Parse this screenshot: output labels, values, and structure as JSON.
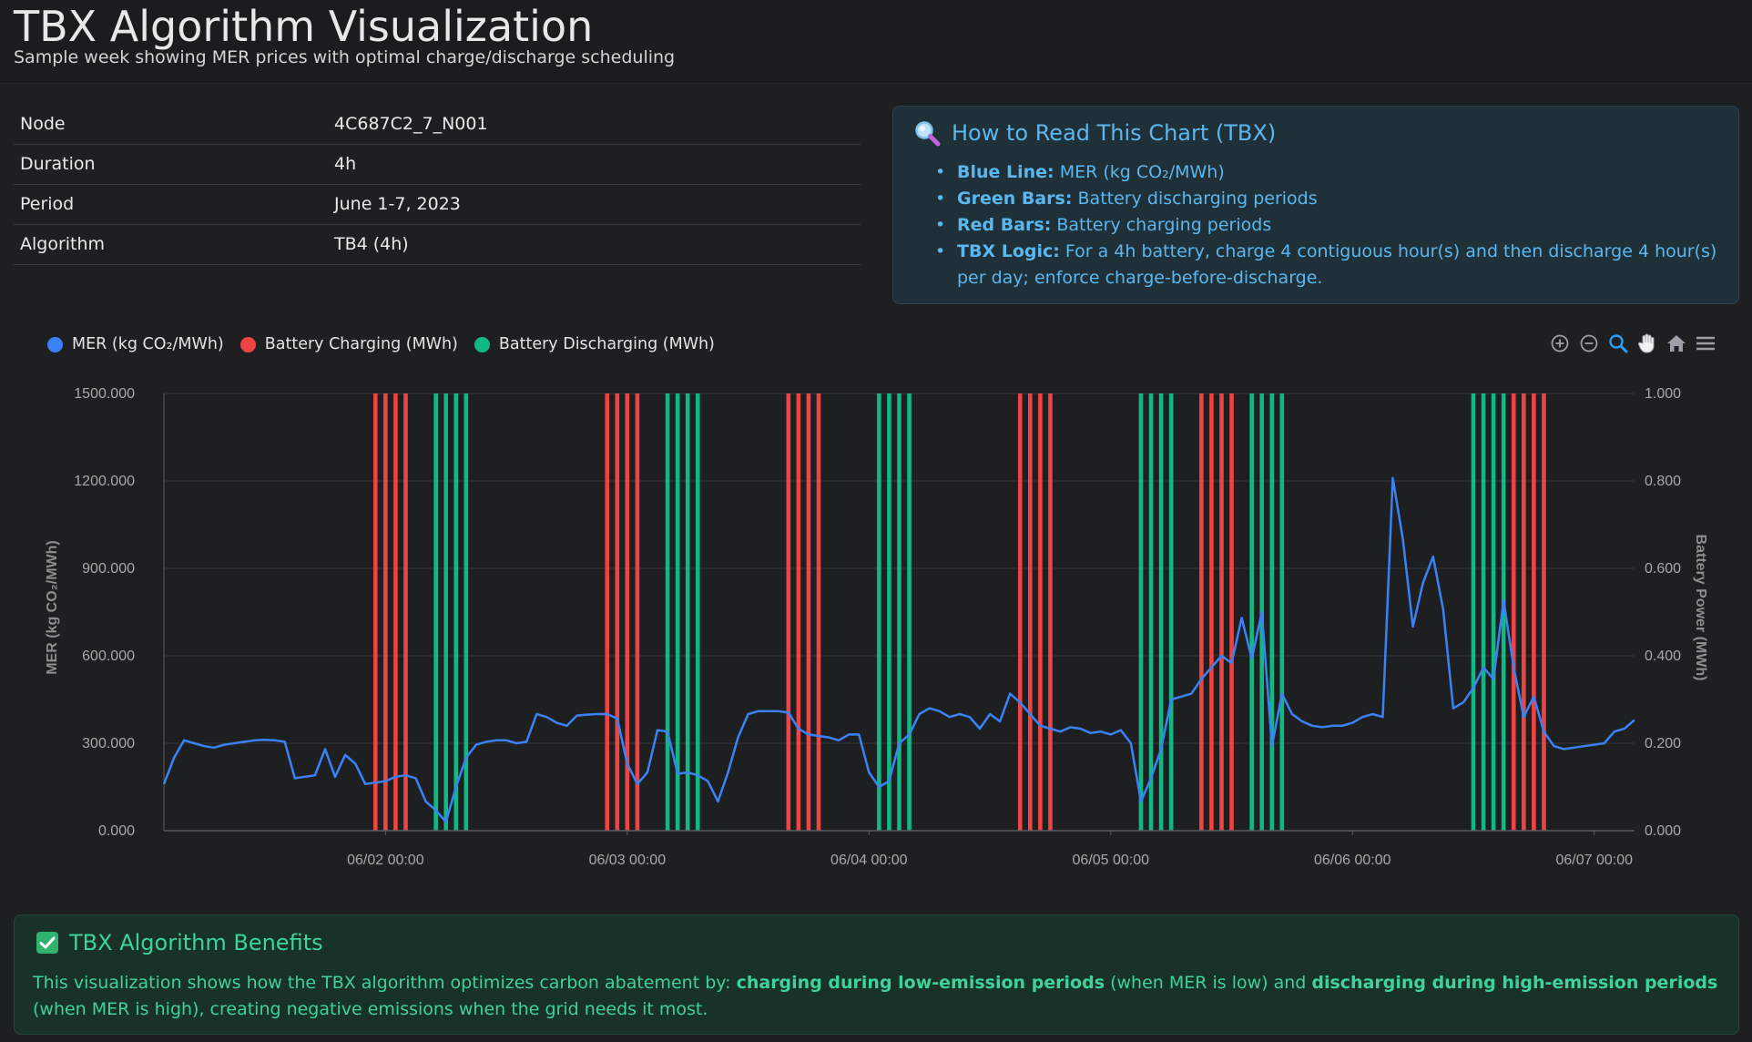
{
  "page": {
    "title": "TBX Algorithm Visualization",
    "subtitle": "Sample week showing MER prices with optimal charge/discharge scheduling"
  },
  "info": [
    {
      "label": "Node",
      "value": "4C687C2_7_N001"
    },
    {
      "label": "Duration",
      "value": "4h"
    },
    {
      "label": "Period",
      "value": "June 1-7, 2023"
    },
    {
      "label": "Algorithm",
      "value": "TB4 (4h)"
    }
  ],
  "howto": {
    "icon": "magnifier-icon",
    "title": "How to Read This Chart (TBX)",
    "items": [
      {
        "label": "Blue Line:",
        "text": "MER (kg CO₂/MWh)"
      },
      {
        "label": "Green Bars:",
        "text": "Battery discharging periods"
      },
      {
        "label": "Red Bars:",
        "text": "Battery charging periods"
      },
      {
        "label": "TBX Logic:",
        "text": "For a 4h battery, charge 4 contiguous hour(s) and then discharge 4 hour(s) per day; enforce charge-before-discharge."
      }
    ]
  },
  "toolbar": {
    "icons": [
      "zoom-in-icon",
      "zoom-out-icon",
      "selection-zoom-icon",
      "pan-icon",
      "home-icon",
      "menu-icon"
    ]
  },
  "colors": {
    "mer": "#3b82f6",
    "charging": "#ef4444",
    "discharging": "#10b981",
    "accent_blue": "#5bb7f0",
    "accent_green": "#3fd29a"
  },
  "chart_data": {
    "type": "line",
    "legend_position": "top-left",
    "grid": true,
    "x_range": [
      "2023-06-01 02:00",
      "2023-06-07 04:00"
    ],
    "x_ticks": [
      "06/02 00:00",
      "06/03 00:00",
      "06/04 00:00",
      "06/05 00:00",
      "06/06 00:00",
      "06/07 00:00"
    ],
    "y_left": {
      "title": "MER (kg CO₂/MWh)",
      "range": [
        0,
        1500
      ],
      "ticks": [
        "0.000",
        "300.000",
        "600.000",
        "900.000",
        "1200.000",
        "1500.000"
      ]
    },
    "y_right": {
      "title": "Battery Power (MWh)",
      "range": [
        0,
        1
      ],
      "ticks": [
        "0.000",
        "0.200",
        "0.400",
        "0.600",
        "0.800",
        "1.000"
      ]
    },
    "series": [
      {
        "name": "MER (kg CO₂/MWh)",
        "axis": "left",
        "points": [
          [
            "2023-06-01 02:00",
            160
          ],
          [
            "2023-06-01 03:00",
            250
          ],
          [
            "2023-06-01 04:00",
            310
          ],
          [
            "2023-06-01 05:00",
            300
          ],
          [
            "2023-06-01 06:00",
            290
          ],
          [
            "2023-06-01 07:00",
            285
          ],
          [
            "2023-06-01 08:00",
            295
          ],
          [
            "2023-06-01 09:00",
            300
          ],
          [
            "2023-06-01 10:00",
            305
          ],
          [
            "2023-06-01 11:00",
            310
          ],
          [
            "2023-06-01 12:00",
            312
          ],
          [
            "2023-06-01 13:00",
            310
          ],
          [
            "2023-06-01 14:00",
            305
          ],
          [
            "2023-06-01 15:00",
            180
          ],
          [
            "2023-06-01 16:00",
            185
          ],
          [
            "2023-06-01 17:00",
            190
          ],
          [
            "2023-06-01 18:00",
            280
          ],
          [
            "2023-06-01 19:00",
            185
          ],
          [
            "2023-06-01 20:00",
            260
          ],
          [
            "2023-06-01 21:00",
            230
          ],
          [
            "2023-06-01 22:00",
            160
          ],
          [
            "2023-06-01 23:00",
            165
          ],
          [
            "2023-06-02 00:00",
            170
          ],
          [
            "2023-06-02 01:00",
            185
          ],
          [
            "2023-06-02 02:00",
            190
          ],
          [
            "2023-06-02 03:00",
            180
          ],
          [
            "2023-06-02 04:00",
            100
          ],
          [
            "2023-06-02 05:00",
            70
          ],
          [
            "2023-06-02 06:00",
            30
          ],
          [
            "2023-06-02 07:00",
            150
          ],
          [
            "2023-06-02 08:00",
            250
          ],
          [
            "2023-06-02 09:00",
            295
          ],
          [
            "2023-06-02 10:00",
            305
          ],
          [
            "2023-06-02 11:00",
            310
          ],
          [
            "2023-06-02 12:00",
            310
          ],
          [
            "2023-06-02 13:00",
            300
          ],
          [
            "2023-06-02 14:00",
            305
          ],
          [
            "2023-06-02 15:00",
            400
          ],
          [
            "2023-06-02 16:00",
            390
          ],
          [
            "2023-06-02 17:00",
            370
          ],
          [
            "2023-06-02 18:00",
            360
          ],
          [
            "2023-06-02 19:00",
            395
          ],
          [
            "2023-06-02 20:00",
            398
          ],
          [
            "2023-06-02 21:00",
            400
          ],
          [
            "2023-06-02 22:00",
            400
          ],
          [
            "2023-06-02 23:00",
            385
          ],
          [
            "2023-06-03 00:00",
            230
          ],
          [
            "2023-06-03 01:00",
            160
          ],
          [
            "2023-06-03 02:00",
            200
          ],
          [
            "2023-06-03 03:00",
            345
          ],
          [
            "2023-06-03 04:00",
            340
          ],
          [
            "2023-06-03 05:00",
            195
          ],
          [
            "2023-06-03 06:00",
            200
          ],
          [
            "2023-06-03 07:00",
            190
          ],
          [
            "2023-06-03 08:00",
            170
          ],
          [
            "2023-06-03 09:00",
            100
          ],
          [
            "2023-06-03 10:00",
            200
          ],
          [
            "2023-06-03 11:00",
            320
          ],
          [
            "2023-06-03 12:00",
            400
          ],
          [
            "2023-06-03 13:00",
            410
          ],
          [
            "2023-06-03 14:00",
            410
          ],
          [
            "2023-06-03 15:00",
            410
          ],
          [
            "2023-06-03 16:00",
            405
          ],
          [
            "2023-06-03 17:00",
            350
          ],
          [
            "2023-06-03 18:00",
            330
          ],
          [
            "2023-06-03 19:00",
            325
          ],
          [
            "2023-06-03 20:00",
            320
          ],
          [
            "2023-06-03 21:00",
            310
          ],
          [
            "2023-06-03 22:00",
            330
          ],
          [
            "2023-06-03 23:00",
            330
          ],
          [
            "2023-06-04 00:00",
            200
          ],
          [
            "2023-06-04 01:00",
            150
          ],
          [
            "2023-06-04 02:00",
            170
          ],
          [
            "2023-06-04 03:00",
            300
          ],
          [
            "2023-06-04 04:00",
            330
          ],
          [
            "2023-06-04 05:00",
            400
          ],
          [
            "2023-06-04 06:00",
            420
          ],
          [
            "2023-06-04 07:00",
            410
          ],
          [
            "2023-06-04 08:00",
            390
          ],
          [
            "2023-06-04 09:00",
            400
          ],
          [
            "2023-06-04 10:00",
            390
          ],
          [
            "2023-06-04 11:00",
            350
          ],
          [
            "2023-06-04 12:00",
            400
          ],
          [
            "2023-06-04 13:00",
            375
          ],
          [
            "2023-06-04 14:00",
            470
          ],
          [
            "2023-06-04 15:00",
            440
          ],
          [
            "2023-06-04 16:00",
            400
          ],
          [
            "2023-06-04 17:00",
            360
          ],
          [
            "2023-06-04 18:00",
            350
          ],
          [
            "2023-06-04 19:00",
            340
          ],
          [
            "2023-06-04 20:00",
            355
          ],
          [
            "2023-06-04 21:00",
            350
          ],
          [
            "2023-06-04 22:00",
            335
          ],
          [
            "2023-06-04 23:00",
            340
          ],
          [
            "2023-06-05 00:00",
            330
          ],
          [
            "2023-06-05 01:00",
            345
          ],
          [
            "2023-06-05 02:00",
            300
          ],
          [
            "2023-06-05 03:00",
            100
          ],
          [
            "2023-06-05 04:00",
            180
          ],
          [
            "2023-06-05 05:00",
            280
          ],
          [
            "2023-06-05 06:00",
            450
          ],
          [
            "2023-06-05 07:00",
            460
          ],
          [
            "2023-06-05 08:00",
            470
          ],
          [
            "2023-06-05 09:00",
            520
          ],
          [
            "2023-06-05 10:00",
            560
          ],
          [
            "2023-06-05 11:00",
            600
          ],
          [
            "2023-06-05 12:00",
            575
          ],
          [
            "2023-06-05 13:00",
            730
          ],
          [
            "2023-06-05 14:00",
            590
          ],
          [
            "2023-06-05 15:00",
            750
          ],
          [
            "2023-06-05 16:00",
            290
          ],
          [
            "2023-06-05 17:00",
            470
          ],
          [
            "2023-06-05 18:00",
            400
          ],
          [
            "2023-06-05 19:00",
            375
          ],
          [
            "2023-06-05 20:00",
            360
          ],
          [
            "2023-06-05 21:00",
            355
          ],
          [
            "2023-06-05 22:00",
            360
          ],
          [
            "2023-06-05 23:00",
            360
          ],
          [
            "2023-06-06 00:00",
            370
          ],
          [
            "2023-06-06 01:00",
            390
          ],
          [
            "2023-06-06 02:00",
            400
          ],
          [
            "2023-06-06 03:00",
            390
          ],
          [
            "2023-06-06 04:00",
            1210
          ],
          [
            "2023-06-06 05:00",
            1000
          ],
          [
            "2023-06-06 06:00",
            700
          ],
          [
            "2023-06-06 07:00",
            850
          ],
          [
            "2023-06-06 08:00",
            940
          ],
          [
            "2023-06-06 09:00",
            760
          ],
          [
            "2023-06-06 10:00",
            420
          ],
          [
            "2023-06-06 11:00",
            440
          ],
          [
            "2023-06-06 12:00",
            490
          ],
          [
            "2023-06-06 13:00",
            560
          ],
          [
            "2023-06-06 14:00",
            520
          ],
          [
            "2023-06-06 15:00",
            790
          ],
          [
            "2023-06-06 16:00",
            560
          ],
          [
            "2023-06-06 17:00",
            390
          ],
          [
            "2023-06-06 18:00",
            460
          ],
          [
            "2023-06-06 19:00",
            340
          ],
          [
            "2023-06-06 20:00",
            290
          ],
          [
            "2023-06-06 21:00",
            280
          ],
          [
            "2023-06-06 22:00",
            285
          ],
          [
            "2023-06-06 23:00",
            290
          ],
          [
            "2023-06-07 00:00",
            295
          ],
          [
            "2023-06-07 01:00",
            300
          ],
          [
            "2023-06-07 02:00",
            340
          ],
          [
            "2023-06-07 03:00",
            350
          ],
          [
            "2023-06-07 04:00",
            380
          ]
        ]
      },
      {
        "name": "Battery Charging (MWh)",
        "axis": "right",
        "bars": [
          [
            "2023-06-01 23:00",
            1
          ],
          [
            "2023-06-02 00:00",
            1
          ],
          [
            "2023-06-02 01:00",
            1
          ],
          [
            "2023-06-02 02:00",
            1
          ],
          [
            "2023-06-02 22:00",
            1
          ],
          [
            "2023-06-02 23:00",
            1
          ],
          [
            "2023-06-03 00:00",
            1
          ],
          [
            "2023-06-03 01:00",
            1
          ],
          [
            "2023-06-03 16:00",
            1
          ],
          [
            "2023-06-03 17:00",
            1
          ],
          [
            "2023-06-03 18:00",
            1
          ],
          [
            "2023-06-03 19:00",
            1
          ],
          [
            "2023-06-04 15:00",
            1
          ],
          [
            "2023-06-04 16:00",
            1
          ],
          [
            "2023-06-04 17:00",
            1
          ],
          [
            "2023-06-04 18:00",
            1
          ],
          [
            "2023-06-05 09:00",
            1
          ],
          [
            "2023-06-05 10:00",
            1
          ],
          [
            "2023-06-05 11:00",
            1
          ],
          [
            "2023-06-05 12:00",
            1
          ],
          [
            "2023-06-06 16:00",
            1
          ],
          [
            "2023-06-06 17:00",
            1
          ],
          [
            "2023-06-06 18:00",
            1
          ],
          [
            "2023-06-06 19:00",
            1
          ]
        ]
      },
      {
        "name": "Battery Discharging (MWh)",
        "axis": "right",
        "bars": [
          [
            "2023-06-02 05:00",
            1
          ],
          [
            "2023-06-02 06:00",
            1
          ],
          [
            "2023-06-02 07:00",
            1
          ],
          [
            "2023-06-02 08:00",
            1
          ],
          [
            "2023-06-03 04:00",
            1
          ],
          [
            "2023-06-03 05:00",
            1
          ],
          [
            "2023-06-03 06:00",
            1
          ],
          [
            "2023-06-03 07:00",
            1
          ],
          [
            "2023-06-04 01:00",
            1
          ],
          [
            "2023-06-04 02:00",
            1
          ],
          [
            "2023-06-04 03:00",
            1
          ],
          [
            "2023-06-04 04:00",
            1
          ],
          [
            "2023-06-05 03:00",
            1
          ],
          [
            "2023-06-05 04:00",
            1
          ],
          [
            "2023-06-05 05:00",
            1
          ],
          [
            "2023-06-05 06:00",
            1
          ],
          [
            "2023-06-05 14:00",
            1
          ],
          [
            "2023-06-05 15:00",
            1
          ],
          [
            "2023-06-05 16:00",
            1
          ],
          [
            "2023-06-05 17:00",
            1
          ],
          [
            "2023-06-06 12:00",
            1
          ],
          [
            "2023-06-06 13:00",
            1
          ],
          [
            "2023-06-06 14:00",
            1
          ],
          [
            "2023-06-06 15:00",
            1
          ]
        ]
      }
    ]
  },
  "benefits": {
    "icon": "checkmark-icon",
    "title": "TBX Algorithm Benefits",
    "text_1": "This visualization shows how the TBX algorithm optimizes carbon abatement by: ",
    "bold_1": "charging during low-emission periods",
    "text_2": " (when MER is low) and ",
    "bold_2": "discharging during high-emission periods",
    "text_3": " (when MER is high), creating negative emissions when the grid needs it most."
  }
}
